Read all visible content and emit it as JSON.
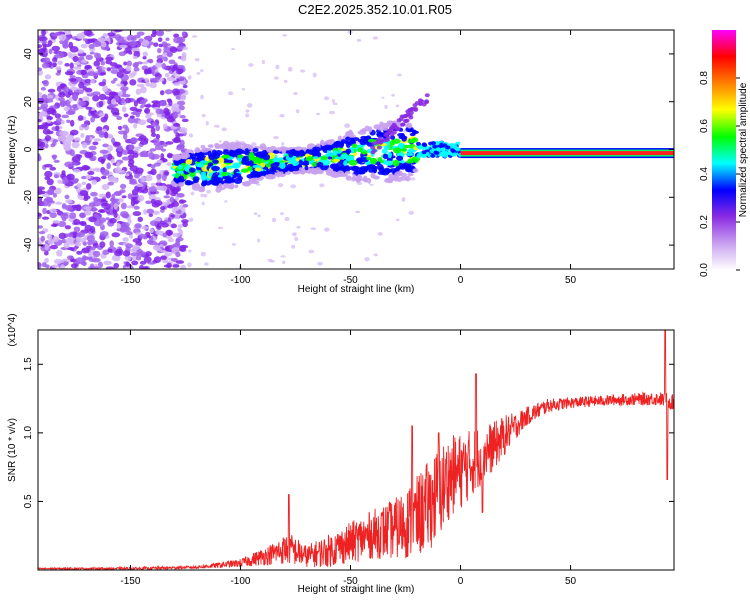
{
  "title": "C2E2.2025.352.10.01.R05",
  "chart_data": [
    {
      "type": "heatmap",
      "name": "spectrogram",
      "xlabel": "Height of straight line (km)",
      "ylabel": "Frequency (Hz)",
      "xlim": [
        -192,
        97
      ],
      "ylim": [
        -50,
        50
      ],
      "xticks": [
        -150,
        -100,
        -50,
        0,
        50
      ],
      "yticks": [
        -40,
        -20,
        0,
        20,
        40
      ],
      "colorbar": {
        "label": "Normalized spectral amplitude",
        "range": [
          0,
          1
        ],
        "ticks": [
          0.0,
          0.2,
          0.4,
          0.6,
          0.8
        ],
        "colors": [
          "#ffffff",
          "#c8a0f0",
          "#8a2be2",
          "#0000ff",
          "#00ffff",
          "#00ff00",
          "#ffff00",
          "#ff8000",
          "#ff0000",
          "#ff00ff"
        ]
      },
      "features": [
        {
          "name": "noise",
          "x": [
            -192,
            -125
          ],
          "freq": [
            -50,
            50
          ],
          "amplitude": 0.15
        },
        {
          "name": "broad-band",
          "x": [
            -130,
            -20
          ],
          "freq_center_start": -9,
          "freq_center_end": 0,
          "amplitude": 0.45
        },
        {
          "name": "rising-streak",
          "x": [
            -40,
            -15
          ],
          "freq_start": 0,
          "freq_end": 22,
          "amplitude": 0.2
        },
        {
          "name": "narrow-line",
          "x": [
            0,
            97
          ],
          "freq": -1.5,
          "amplitude": 0.9
        }
      ]
    },
    {
      "type": "line",
      "name": "snr",
      "xlabel": "Height of straight line (km)",
      "ylabel": "SNR (10 * v/v)",
      "y_scale_note": "(x10^4)",
      "xlim": [
        -192,
        97
      ],
      "ylim": [
        0,
        1.75
      ],
      "xticks": [
        -150,
        -100,
        -50,
        0,
        50
      ],
      "yticks": [
        0.5,
        1.0,
        1.5
      ],
      "color": "#ee2222",
      "envelope": {
        "x": [
          -192,
          -150,
          -120,
          -100,
          -85,
          -78,
          -70,
          -60,
          -50,
          -40,
          -30,
          -20,
          -10,
          -5,
          0,
          5,
          10,
          15,
          20,
          25,
          30,
          40,
          50,
          70,
          90,
          97
        ],
        "mean": [
          0.01,
          0.01,
          0.02,
          0.05,
          0.12,
          0.16,
          0.1,
          0.14,
          0.2,
          0.26,
          0.3,
          0.38,
          0.55,
          0.68,
          0.72,
          0.78,
          0.85,
          0.9,
          0.98,
          1.05,
          1.12,
          1.2,
          1.22,
          1.24,
          1.25,
          1.22
        ],
        "spread": [
          0.005,
          0.01,
          0.01,
          0.03,
          0.08,
          0.12,
          0.08,
          0.12,
          0.15,
          0.18,
          0.22,
          0.3,
          0.35,
          0.3,
          0.28,
          0.25,
          0.22,
          0.18,
          0.15,
          0.1,
          0.07,
          0.05,
          0.04,
          0.04,
          0.05,
          0.06
        ]
      },
      "spikes": [
        [
          -78,
          0.55
        ],
        [
          -22,
          1.05
        ],
        [
          -10,
          1.0
        ],
        [
          7,
          1.43
        ],
        [
          10,
          0.42
        ],
        [
          93,
          1.75
        ],
        [
          94,
          0.66
        ]
      ]
    }
  ]
}
